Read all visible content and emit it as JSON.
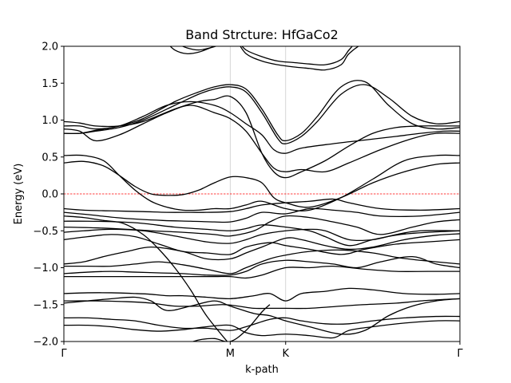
{
  "chart_data": {
    "type": "line",
    "title": "Band Strcture: HfGaCo2",
    "xlabel": "k-path",
    "ylabel": "Energy (eV)",
    "xlim": [
      0,
      1
    ],
    "ylim": [
      -2.0,
      2.0
    ],
    "yticks": [
      2.0,
      1.5,
      1.0,
      0.5,
      0.0,
      -0.5,
      -1.0,
      -1.5,
      -2.0
    ],
    "ytick_labels": [
      "2.0",
      "1.5",
      "1.0",
      "0.5",
      "0.0",
      "−0.5",
      "−1.0",
      "−1.5",
      "−2.0"
    ],
    "kpoints": [
      {
        "label": "Γ",
        "x": 0.0
      },
      {
        "label": "M",
        "x": 0.42
      },
      {
        "label": "K",
        "x": 0.56
      },
      {
        "label": "Γ",
        "x": 1.0
      }
    ],
    "fermi_level": 0.0,
    "colors": {
      "band": "#000000",
      "fermi": "#ff0000",
      "vline": "#cccccc"
    },
    "series": [
      {
        "x": [
          0,
          0.05,
          0.12,
          0.2,
          0.26,
          0.32,
          0.36,
          0.42,
          0.46,
          0.5,
          0.56,
          0.62,
          0.68,
          0.72,
          0.8,
          0.9,
          1.0
        ],
        "values": [
          -0.2,
          -0.22,
          -0.23,
          -0.24,
          -0.25,
          -0.25,
          -0.25,
          -0.24,
          -0.2,
          -0.15,
          -0.12,
          -0.1,
          -0.07,
          -0.12,
          -0.2,
          -0.22,
          -0.2
        ]
      },
      {
        "x": [
          0,
          0.06,
          0.15,
          0.25,
          0.32,
          0.38,
          0.42,
          0.46,
          0.5,
          0.56,
          0.62,
          0.68,
          0.74,
          0.8,
          0.9,
          1.0
        ],
        "values": [
          -0.25,
          -0.28,
          -0.33,
          -0.36,
          -0.37,
          -0.38,
          -0.38,
          -0.33,
          -0.25,
          -0.27,
          -0.2,
          -0.22,
          -0.25,
          -0.3,
          -0.3,
          -0.25
        ]
      },
      {
        "x": [
          0,
          0.08,
          0.16,
          0.22,
          0.3,
          0.38,
          0.42,
          0.48,
          0.52,
          0.56,
          0.62,
          0.68,
          0.74,
          0.8,
          0.88,
          0.94,
          1.0
        ],
        "values": [
          -0.45,
          -0.46,
          -0.48,
          -0.5,
          -0.52,
          -0.55,
          -0.57,
          -0.5,
          -0.38,
          -0.3,
          -0.32,
          -0.38,
          -0.45,
          -0.55,
          -0.45,
          -0.38,
          -0.35
        ]
      },
      {
        "x": [
          0,
          0.05,
          0.12,
          0.2,
          0.28,
          0.36,
          0.42,
          0.46,
          0.5,
          0.56,
          0.62,
          0.66,
          0.72,
          0.78,
          0.84,
          0.9,
          1.0
        ],
        "values": [
          -0.52,
          -0.5,
          -0.48,
          -0.5,
          -0.57,
          -0.65,
          -0.67,
          -0.62,
          -0.55,
          -0.5,
          -0.48,
          -0.5,
          -0.62,
          -0.62,
          -0.55,
          -0.5,
          -0.5
        ]
      },
      {
        "x": [
          0,
          0.06,
          0.14,
          0.2,
          0.28,
          0.36,
          0.42,
          0.46,
          0.5,
          0.56,
          0.62,
          0.66,
          0.72,
          0.78,
          0.85,
          0.92,
          1.0
        ],
        "values": [
          -0.37,
          -0.37,
          -0.38,
          -0.4,
          -0.45,
          -0.48,
          -0.5,
          -0.47,
          -0.42,
          -0.45,
          -0.5,
          -0.58,
          -0.7,
          -0.62,
          -0.55,
          -0.52,
          -0.5
        ]
      },
      {
        "x": [
          0,
          0.06,
          0.12,
          0.18,
          0.24,
          0.3,
          0.36,
          0.42,
          0.46,
          0.52,
          0.56,
          0.62,
          0.7,
          0.76,
          0.84,
          0.92,
          1.0
        ],
        "values": [
          -0.62,
          -0.58,
          -0.55,
          -0.58,
          -0.68,
          -0.78,
          -0.8,
          -0.82,
          -0.72,
          -0.66,
          -0.7,
          -0.75,
          -0.82,
          -0.75,
          -0.68,
          -0.65,
          -0.62
        ]
      },
      {
        "x": [
          0,
          0.05,
          0.1,
          0.16,
          0.22,
          0.3,
          0.36,
          0.42,
          0.46,
          0.5,
          0.56,
          0.6,
          0.66,
          0.72,
          0.78,
          0.86,
          0.94,
          1.0
        ],
        "values": [
          -0.95,
          -0.92,
          -0.85,
          -0.78,
          -0.72,
          -0.78,
          -0.88,
          -0.88,
          -0.8,
          -0.72,
          -0.6,
          -0.62,
          -0.7,
          -0.75,
          -0.72,
          -0.62,
          -0.56,
          -0.54
        ]
      },
      {
        "x": [
          0,
          0.06,
          0.12,
          0.18,
          0.24,
          0.3,
          0.36,
          0.42,
          0.46,
          0.52,
          0.56,
          0.62,
          0.7,
          0.78,
          0.84,
          0.9,
          1.0
        ],
        "values": [
          -0.98,
          -0.98,
          -0.98,
          -0.95,
          -0.92,
          -0.96,
          -1.02,
          -1.08,
          -1.0,
          -0.88,
          -0.83,
          -0.78,
          -0.76,
          -0.8,
          -0.86,
          -0.9,
          -0.95
        ]
      },
      {
        "x": [
          0,
          0.06,
          0.12,
          0.18,
          0.24,
          0.3,
          0.36,
          0.42,
          0.46,
          0.5,
          0.56,
          0.62,
          0.68,
          0.74,
          0.8,
          0.88,
          0.94,
          1.0
        ],
        "values": [
          -1.08,
          -1.06,
          -1.05,
          -1.06,
          -1.07,
          -1.08,
          -1.1,
          -1.1,
          -1.05,
          -0.95,
          -0.9,
          -0.92,
          -0.95,
          -1.0,
          -0.92,
          -0.85,
          -0.95,
          -1.0
        ]
      },
      {
        "x": [
          0,
          0.06,
          0.14,
          0.22,
          0.3,
          0.38,
          0.42,
          0.46,
          0.5,
          0.56,
          0.62,
          0.68,
          0.76,
          0.84,
          0.92,
          1.0
        ],
        "values": [
          -1.12,
          -1.12,
          -1.12,
          -1.12,
          -1.12,
          -1.12,
          -1.12,
          -1.14,
          -1.1,
          -1.0,
          -1.0,
          -0.98,
          -1.02,
          -1.05,
          -1.05,
          -1.05
        ]
      },
      {
        "x": [
          0,
          0.06,
          0.12,
          0.18,
          0.22,
          0.26,
          0.3,
          0.36,
          0.42,
          0.48,
          0.52,
          0.56,
          0.6,
          0.66,
          0.72,
          0.78,
          0.86,
          0.94,
          1.0
        ],
        "values": [
          -1.35,
          -1.34,
          -1.34,
          -1.35,
          -1.36,
          -1.38,
          -1.38,
          -1.4,
          -1.42,
          -1.38,
          -1.35,
          -1.45,
          -1.35,
          -1.32,
          -1.28,
          -1.3,
          -1.35,
          -1.36,
          -1.35
        ]
      },
      {
        "x": [
          0,
          0.08,
          0.16,
          0.22,
          0.28,
          0.34,
          0.4,
          0.44,
          0.48,
          0.52,
          0.56,
          0.62,
          0.7,
          0.76,
          0.84,
          0.9,
          0.96,
          1.0
        ],
        "values": [
          -1.45,
          -1.45,
          -1.46,
          -1.48,
          -1.52,
          -1.52,
          -1.5,
          -1.52,
          -1.55,
          -1.55,
          -1.55,
          -1.55,
          -1.52,
          -1.5,
          -1.48,
          -1.45,
          -1.43,
          -1.42
        ]
      },
      {
        "x": [
          0,
          0.06,
          0.12,
          0.18,
          0.22,
          0.26,
          0.32,
          0.38,
          0.42,
          0.48,
          0.52,
          0.56,
          0.62,
          0.7,
          0.76,
          0.82,
          0.88,
          0.94,
          1.0
        ],
        "values": [
          -1.48,
          -1.45,
          -1.42,
          -1.4,
          -1.45,
          -1.58,
          -1.52,
          -1.45,
          -1.52,
          -1.62,
          -1.65,
          -1.72,
          -1.8,
          -1.9,
          -1.85,
          -1.65,
          -1.52,
          -1.45,
          -1.42
        ]
      },
      {
        "x": [
          0,
          0.06,
          0.12,
          0.18,
          0.24,
          0.3,
          0.36,
          0.42,
          0.46,
          0.52,
          0.56,
          0.6,
          0.66,
          0.72,
          0.78,
          0.86,
          0.94,
          1.0
        ],
        "values": [
          -1.68,
          -1.68,
          -1.7,
          -1.72,
          -1.78,
          -1.82,
          -1.82,
          -1.85,
          -1.8,
          -1.7,
          -1.68,
          -1.72,
          -1.76,
          -1.76,
          -1.72,
          -1.68,
          -1.66,
          -1.66
        ]
      },
      {
        "x": [
          0,
          0.06,
          0.12,
          0.18,
          0.24,
          0.3,
          0.36,
          0.42,
          0.46,
          0.5,
          0.56,
          0.62,
          0.68,
          0.72,
          0.78,
          0.86,
          0.94,
          1.0
        ],
        "values": [
          -1.78,
          -1.78,
          -1.8,
          -1.84,
          -1.86,
          -1.84,
          -1.8,
          -1.78,
          -1.88,
          -1.92,
          -1.9,
          -1.92,
          -1.95,
          -1.85,
          -1.8,
          -1.75,
          -1.72,
          -1.72
        ]
      },
      {
        "x": [
          0,
          0.05,
          0.1,
          0.15,
          0.2,
          0.24,
          0.28,
          0.32,
          0.36,
          0.42
        ],
        "values": [
          -0.3,
          -0.32,
          -0.36,
          -0.4,
          -0.55,
          -0.75,
          -1.0,
          -1.3,
          -1.65,
          -2.05
        ]
      },
      {
        "x": [
          0.3,
          0.34,
          0.38,
          0.42,
          0.46,
          0.5,
          0.52
        ],
        "values": [
          -2.05,
          -1.98,
          -1.96,
          -2.0,
          -1.85,
          -1.6,
          -1.5
        ]
      },
      {
        "x": [
          0,
          0.05,
          0.1,
          0.14,
          0.18,
          0.22,
          0.26,
          0.3,
          0.34,
          0.38,
          0.42,
          0.46,
          0.5,
          0.53,
          0.56,
          0.62,
          0.7,
          0.78,
          0.86,
          0.94,
          1.0
        ],
        "values": [
          0.42,
          0.44,
          0.38,
          0.25,
          0.1,
          0.0,
          -0.02,
          -0.01,
          0.05,
          0.15,
          0.23,
          0.22,
          0.15,
          -0.05,
          -0.12,
          -0.18,
          -0.05,
          0.15,
          0.3,
          0.4,
          0.42
        ]
      },
      {
        "x": [
          0,
          0.05,
          0.1,
          0.14,
          0.18,
          0.22,
          0.26,
          0.3,
          0.34,
          0.38,
          0.42,
          0.46,
          0.5,
          0.56,
          0.62,
          0.7,
          0.78,
          0.86,
          0.94,
          1.0
        ],
        "values": [
          0.52,
          0.52,
          0.45,
          0.25,
          0.05,
          -0.1,
          -0.18,
          -0.22,
          -0.22,
          -0.2,
          -0.2,
          -0.15,
          -0.1,
          -0.2,
          -0.22,
          -0.05,
          0.2,
          0.45,
          0.52,
          0.52
        ]
      },
      {
        "x": [
          0,
          0.04,
          0.08,
          0.14,
          0.2,
          0.26,
          0.32,
          0.38,
          0.42,
          0.46,
          0.5,
          0.53,
          0.56,
          0.6,
          0.66,
          0.72,
          0.8,
          0.88,
          0.94,
          1.0
        ],
        "values": [
          0.88,
          0.85,
          0.72,
          0.8,
          0.95,
          1.1,
          1.2,
          1.1,
          1.02,
          0.85,
          0.55,
          0.35,
          0.3,
          0.33,
          0.3,
          0.42,
          0.6,
          0.75,
          0.82,
          0.82
        ]
      },
      {
        "x": [
          0,
          0.04,
          0.08,
          0.14,
          0.2,
          0.26,
          0.32,
          0.38,
          0.42,
          0.46,
          0.5,
          0.53,
          0.56,
          0.6,
          0.68,
          0.76,
          0.84,
          0.9,
          0.96,
          1.0
        ],
        "values": [
          0.92,
          0.92,
          0.88,
          0.92,
          1.05,
          1.2,
          1.25,
          1.2,
          1.1,
          0.95,
          0.8,
          0.6,
          0.55,
          0.62,
          0.68,
          0.73,
          0.78,
          0.82,
          0.85,
          0.85
        ]
      },
      {
        "x": [
          0,
          0.04,
          0.08,
          0.14,
          0.2,
          0.28,
          0.34,
          0.38,
          0.42,
          0.46,
          0.5,
          0.53,
          0.56,
          0.6,
          0.66,
          0.72,
          0.78,
          0.84,
          0.9,
          0.96,
          1.0
        ],
        "values": [
          0.98,
          0.96,
          0.92,
          0.92,
          0.98,
          1.15,
          1.25,
          1.28,
          1.32,
          1.1,
          0.55,
          0.3,
          0.22,
          0.3,
          0.45,
          0.65,
          0.82,
          0.9,
          0.92,
          0.92,
          0.92
        ]
      },
      {
        "x": [
          0,
          0.04,
          0.08,
          0.14,
          0.2,
          0.28,
          0.34,
          0.38,
          0.42,
          0.46,
          0.5,
          0.54,
          0.56,
          0.6,
          0.64,
          0.7,
          0.76,
          0.82,
          0.88,
          0.94,
          1.0
        ],
        "values": [
          0.82,
          0.82,
          0.85,
          0.9,
          1.0,
          1.2,
          1.35,
          1.42,
          1.45,
          1.38,
          1.1,
          0.75,
          0.68,
          0.78,
          0.98,
          1.35,
          1.48,
          1.3,
          1.05,
          0.95,
          0.98
        ]
      },
      {
        "x": [
          0,
          0.04,
          0.08,
          0.14,
          0.2,
          0.28,
          0.34,
          0.38,
          0.42,
          0.46,
          0.5,
          0.54,
          0.56,
          0.6,
          0.64,
          0.7,
          0.76,
          0.82,
          0.88,
          0.94,
          1.0
        ],
        "values": [
          0.82,
          0.82,
          0.86,
          0.92,
          1.02,
          1.25,
          1.38,
          1.45,
          1.48,
          1.42,
          1.15,
          0.8,
          0.72,
          0.82,
          1.05,
          1.45,
          1.52,
          1.2,
          0.95,
          0.88,
          0.9
        ]
      },
      {
        "x": [
          0.26,
          0.28,
          0.31,
          0.34,
          0.37,
          0.4,
          0.43,
          0.46,
          0.5,
          0.54,
          0.58,
          0.62,
          0.66,
          0.7,
          0.72,
          0.76,
          0.8
        ],
        "values": [
          2.05,
          1.95,
          1.9,
          1.92,
          1.98,
          2.05,
          2.1,
          1.9,
          1.8,
          1.75,
          1.72,
          1.7,
          1.68,
          1.75,
          1.9,
          2.05,
          2.1
        ]
      },
      {
        "x": [
          0.28,
          0.31,
          0.34,
          0.37,
          0.4,
          0.43,
          0.46,
          0.5,
          0.54,
          0.58,
          0.62,
          0.66,
          0.7,
          0.72,
          0.74,
          0.78
        ],
        "values": [
          2.05,
          1.98,
          1.95,
          1.98,
          2.03,
          2.1,
          1.95,
          1.86,
          1.8,
          1.78,
          1.76,
          1.75,
          1.82,
          1.95,
          2.05,
          2.1
        ]
      }
    ]
  }
}
